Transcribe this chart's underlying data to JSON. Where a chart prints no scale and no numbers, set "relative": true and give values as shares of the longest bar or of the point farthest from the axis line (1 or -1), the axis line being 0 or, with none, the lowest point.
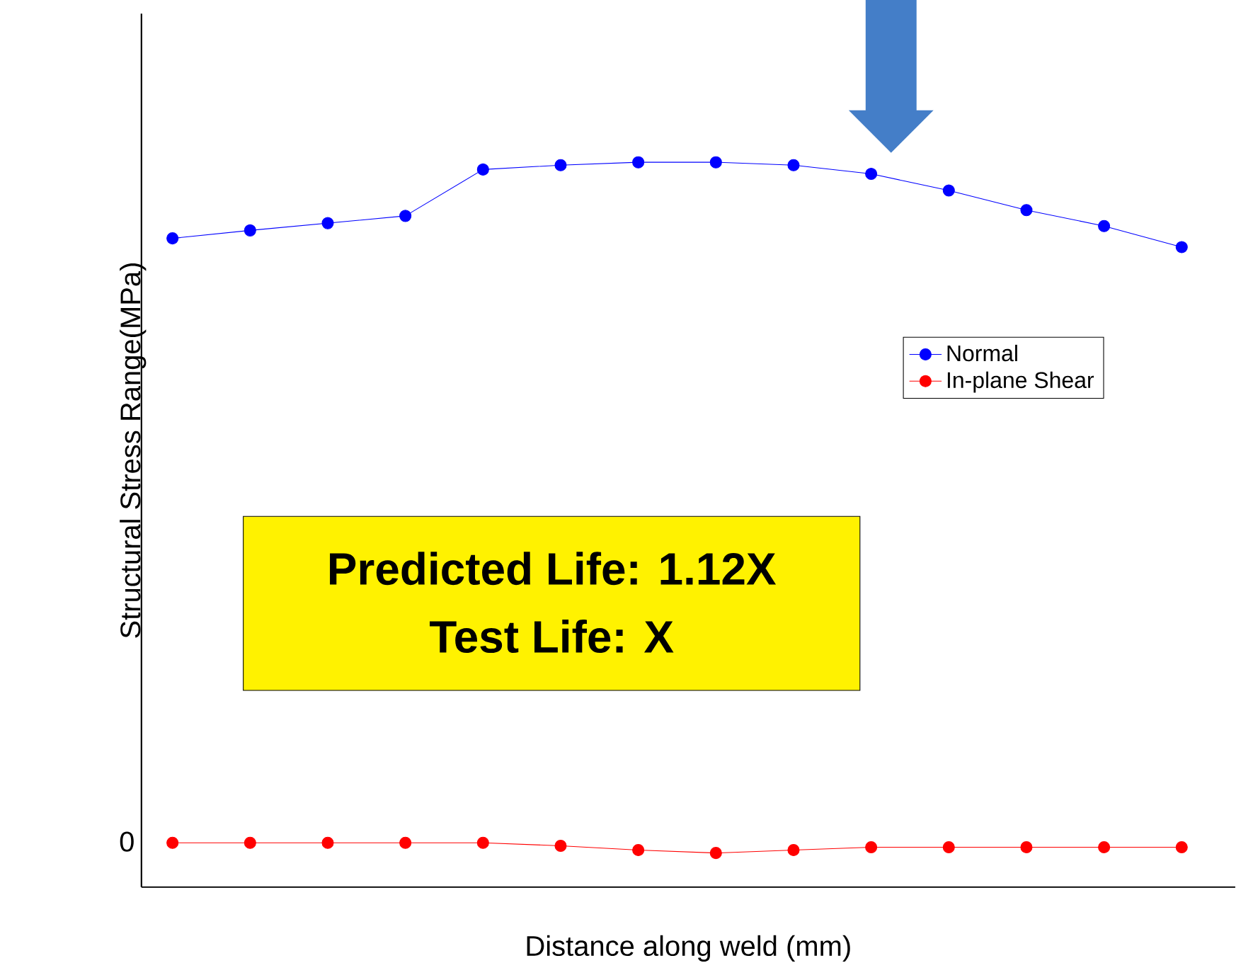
{
  "chart_data": {
    "type": "line",
    "relative": true,
    "xlabel": "Distance along weld (mm)",
    "ylabel": "Structural Stress Range(MPa)",
    "categories": [
      null,
      null,
      null,
      null,
      null,
      null,
      null,
      null,
      null,
      null,
      null,
      null,
      null,
      null
    ],
    "series": [
      {
        "name": "Normal",
        "color": "#0000ff",
        "values": [
          0.895,
          0.906,
          0.916,
          0.926,
          0.99,
          0.996,
          1,
          1,
          0.996,
          0.984,
          0.961,
          0.934,
          0.912,
          0.883
        ]
      },
      {
        "name": "In-plane Shear",
        "color": "#ff0000",
        "values": [
          0.061,
          0.061,
          0.061,
          0.061,
          0.061,
          0.057,
          0.051,
          0.047,
          0.051,
          0.055,
          0.055,
          0.055,
          0.055,
          0.055
        ]
      }
    ],
    "annotations": [
      "Predicted Life: 1.12X",
      "Test Life: X",
      "0"
    ],
    "legend": "right",
    "marker": "circle",
    "line_style": "solid"
  }
}
